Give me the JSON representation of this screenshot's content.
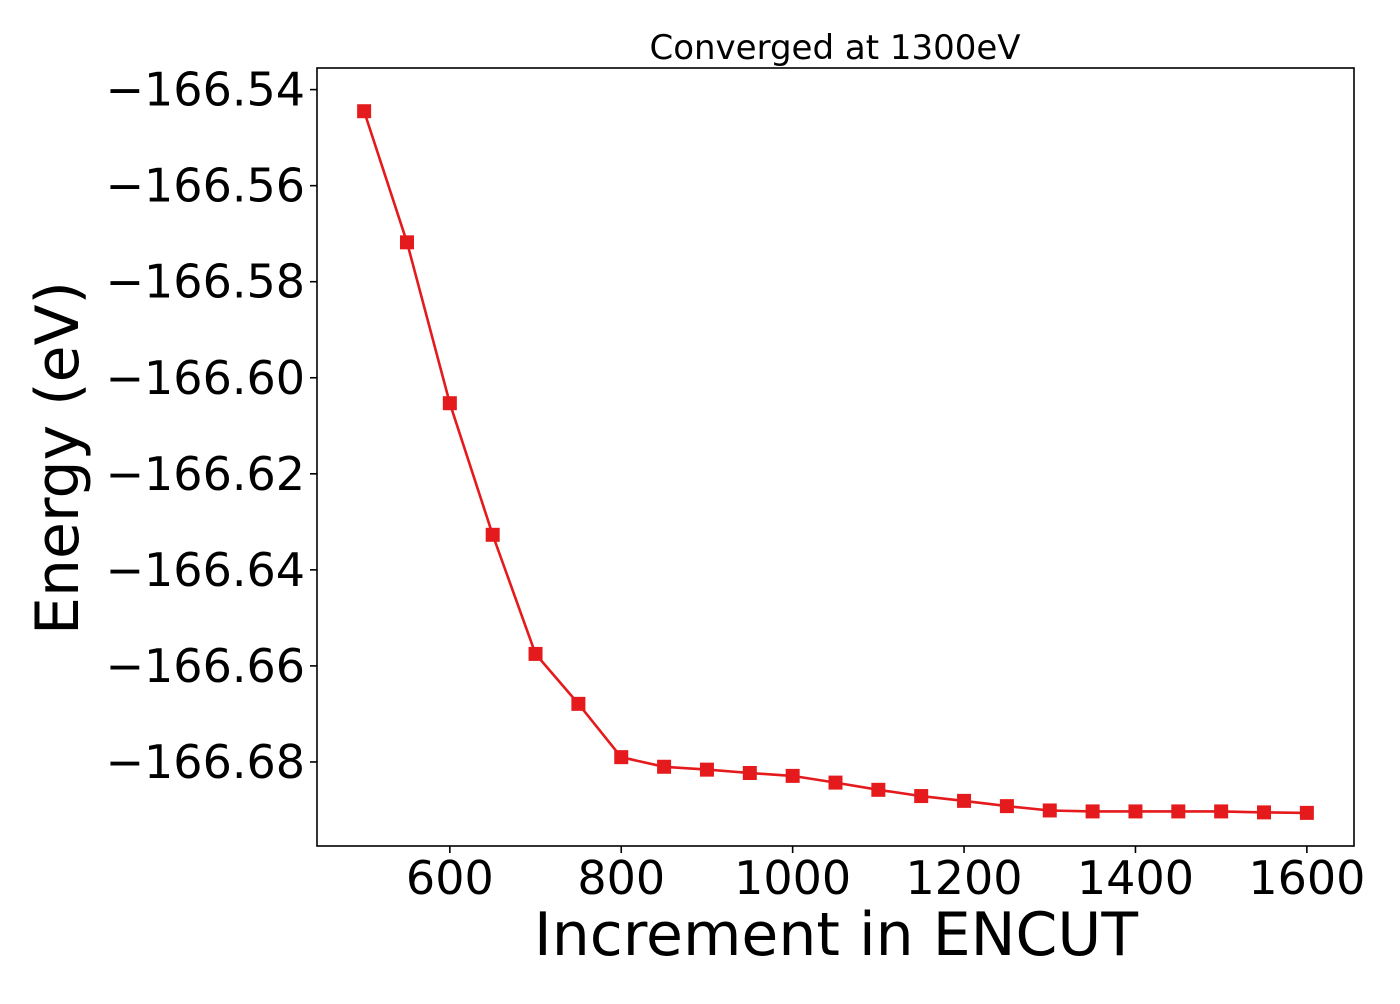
{
  "chart_data": {
    "type": "line",
    "title": "Converged at 1300eV",
    "xlabel": "Increment in ENCUT",
    "ylabel": "Energy (eV)",
    "xlim": [
      445,
      1655
    ],
    "ylim": [
      -166.6975,
      -166.5355
    ],
    "x_ticks": [
      600,
      800,
      1000,
      1200,
      1400,
      1600
    ],
    "x_tick_labels": [
      "600",
      "800",
      "1000",
      "1200",
      "1400",
      "1600"
    ],
    "y_ticks": [
      -166.54,
      -166.56,
      -166.58,
      -166.6,
      -166.62,
      -166.64,
      -166.66,
      -166.68
    ],
    "y_tick_labels": [
      "−166.54",
      "−166.56",
      "−166.58",
      "−166.60",
      "−166.62",
      "−166.64",
      "−166.66",
      "−166.68"
    ],
    "grid": false,
    "legend": "none",
    "series": [
      {
        "color": "#e41a1c",
        "marker": "square",
        "x": [
          500,
          550,
          600,
          650,
          700,
          750,
          800,
          850,
          900,
          950,
          1000,
          1050,
          1100,
          1150,
          1200,
          1250,
          1300,
          1350,
          1400,
          1450,
          1500,
          1550,
          1600
        ],
        "y": [
          -166.5445,
          -166.5718,
          -166.6053,
          -166.6327,
          -166.6575,
          -166.6679,
          -166.679,
          -166.681,
          -166.6816,
          -166.6823,
          -166.6829,
          -166.6843,
          -166.6858,
          -166.6871,
          -166.6881,
          -166.6892,
          -166.6901,
          -166.6903,
          -166.6903,
          -166.6903,
          -166.6903,
          -166.6905,
          -166.6906
        ]
      }
    ]
  }
}
